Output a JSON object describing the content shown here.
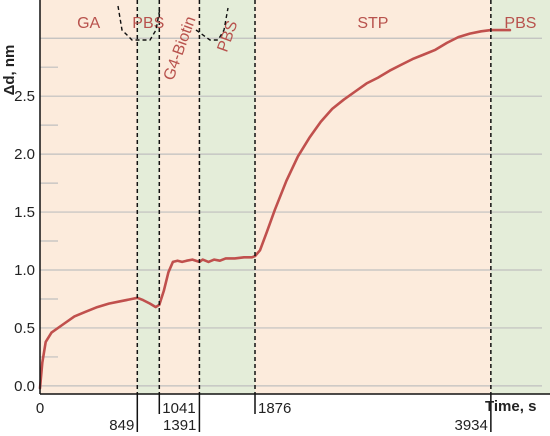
{
  "chart_data": {
    "type": "line",
    "title": "",
    "xlabel": "Time, s",
    "ylabel": "Δd, nm",
    "xlim": [
      0,
      4450
    ],
    "ylim": [
      -0.07,
      3.33
    ],
    "x_ticks": [
      0,
      849,
      1041,
      1391,
      1876,
      3934
    ],
    "x_tick_labels": [
      "0",
      "849",
      "1041",
      "1391",
      "1876",
      "3934"
    ],
    "y_ticks": [
      0.0,
      0.5,
      1.0,
      1.5,
      2.0,
      2.5
    ],
    "y_tick_labels": [
      "0.0",
      "0.5",
      "1.0",
      "1.5",
      "2.0",
      "2.5"
    ],
    "grid": true,
    "colors": {
      "line": "#c0504d",
      "phase_warm": "#fcebdc",
      "phase_cool": "#e4edd9",
      "phase_text": "#b8524d",
      "grid": "#bfbfbf"
    },
    "phases": [
      {
        "label": "GA",
        "start": 0,
        "end": 849,
        "tone": "warm"
      },
      {
        "label": "PBS",
        "start": 849,
        "end": 1041,
        "tone": "cool"
      },
      {
        "label": "G4-Biotin",
        "start": 1041,
        "end": 1391,
        "tone": "warm",
        "rotated": true
      },
      {
        "label": "PBS",
        "start": 1391,
        "end": 1876,
        "tone": "cool",
        "rotated": true
      },
      {
        "label": "STP",
        "start": 1876,
        "end": 3934,
        "tone": "warm"
      },
      {
        "label": "PBS",
        "start": 3934,
        "end": 4450,
        "tone": "cool"
      }
    ],
    "series": [
      {
        "x": [
          0,
          20,
          50,
          100,
          200,
          300,
          400,
          500,
          600,
          700,
          800,
          849,
          900,
          960,
          1010,
          1041,
          1080,
          1120,
          1160,
          1200,
          1240,
          1280,
          1330,
          1391,
          1420,
          1470,
          1520,
          1570,
          1620,
          1700,
          1780,
          1850,
          1876,
          1920,
          1980,
          2050,
          2150,
          2250,
          2350,
          2450,
          2550,
          2650,
          2750,
          2850,
          2950,
          3050,
          3150,
          3250,
          3350,
          3450,
          3550,
          3650,
          3750,
          3850,
          3934,
          4000,
          4100
        ],
        "y": [
          -0.02,
          0.2,
          0.38,
          0.46,
          0.53,
          0.6,
          0.64,
          0.68,
          0.71,
          0.73,
          0.75,
          0.76,
          0.74,
          0.71,
          0.68,
          0.7,
          0.82,
          0.98,
          1.07,
          1.08,
          1.07,
          1.08,
          1.09,
          1.07,
          1.09,
          1.07,
          1.09,
          1.08,
          1.1,
          1.1,
          1.11,
          1.11,
          1.12,
          1.17,
          1.33,
          1.52,
          1.77,
          1.98,
          2.14,
          2.28,
          2.39,
          2.47,
          2.54,
          2.61,
          2.66,
          2.72,
          2.77,
          2.82,
          2.86,
          2.9,
          2.96,
          3.01,
          3.04,
          3.06,
          3.07,
          3.07,
          3.07
        ]
      }
    ]
  }
}
